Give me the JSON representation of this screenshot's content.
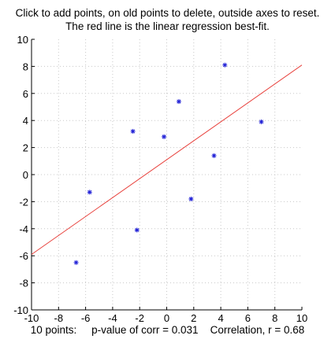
{
  "instructions": {
    "line1": "Click to add points, on old points to delete, outside axes to reset.",
    "line2": "The red line is the linear regression best-fit."
  },
  "stats": {
    "count_text": "10 points:",
    "pvalue_text": "p-value of corr = 0.031",
    "correlation_text": "Correlation, r = 0.68"
  },
  "colors": {
    "points": "#1f1fd6",
    "fit_line": "#e8413c",
    "grid": "#c8c8c8",
    "axes": "#000000"
  },
  "chart_data": {
    "type": "scatter",
    "title": "",
    "xlabel": "",
    "ylabel": "",
    "xlim": [
      -10,
      10
    ],
    "ylim": [
      -10,
      10
    ],
    "xticks": [
      -10,
      -8,
      -6,
      -4,
      -2,
      0,
      2,
      4,
      6,
      8,
      10
    ],
    "yticks": [
      -10,
      -8,
      -6,
      -4,
      -2,
      0,
      2,
      4,
      6,
      8,
      10
    ],
    "grid": true,
    "marker": "*",
    "points": [
      {
        "x": -6.7,
        "y": -6.5
      },
      {
        "x": -5.7,
        "y": -1.3
      },
      {
        "x": -2.5,
        "y": 3.2
      },
      {
        "x": -2.2,
        "y": -4.1
      },
      {
        "x": -0.2,
        "y": 2.8
      },
      {
        "x": 0.9,
        "y": 5.4
      },
      {
        "x": 1.8,
        "y": -1.8
      },
      {
        "x": 3.5,
        "y": 1.4
      },
      {
        "x": 4.3,
        "y": 8.1
      },
      {
        "x": 7.0,
        "y": 3.9
      }
    ],
    "fit_line": {
      "x": [
        -10,
        10
      ],
      "y": [
        -5.9,
        8.1
      ]
    }
  }
}
